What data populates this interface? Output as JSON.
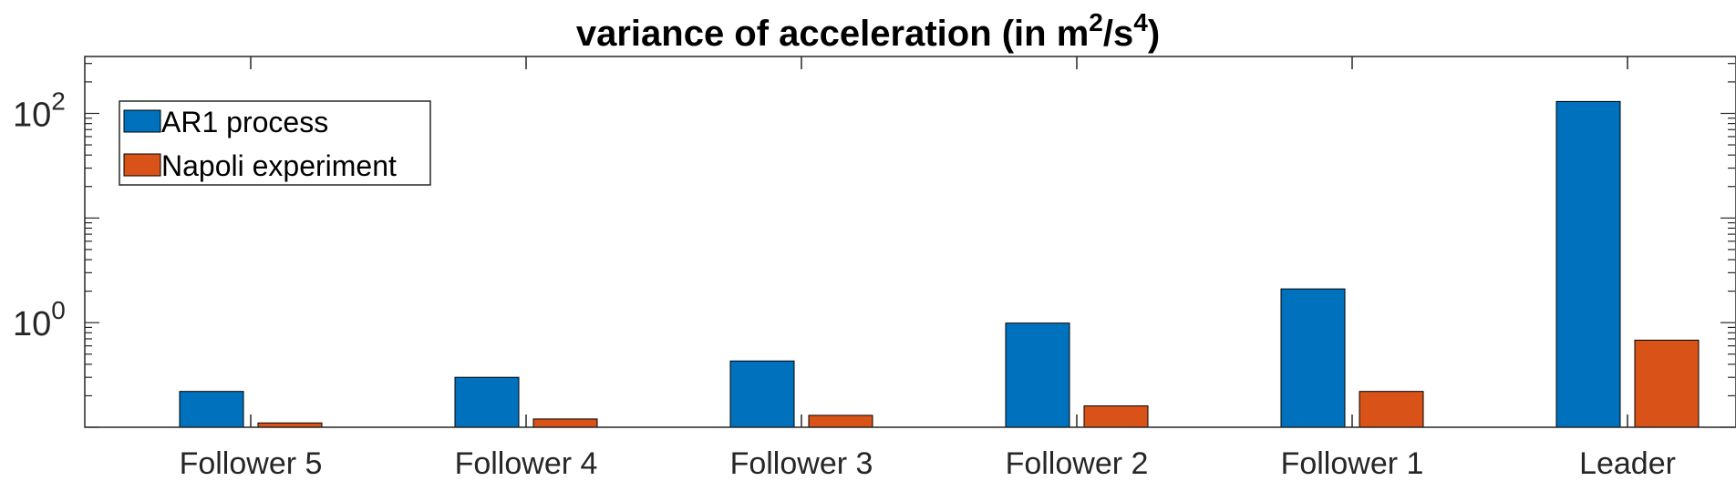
{
  "chart_data": {
    "type": "bar",
    "title": "variance of acceleration (in m",
    "title_sup1": "2",
    "title_mid": "/s",
    "title_sup2": "4",
    "title_end": ")",
    "categories": [
      "Follower 5",
      "Follower 4",
      "Follower 3",
      "Follower 2",
      "Follower 1",
      "Leader"
    ],
    "series": [
      {
        "name": "AR1 process",
        "color": "#0072BD",
        "values": [
          0.22,
          0.3,
          0.43,
          0.99,
          2.1,
          130
        ]
      },
      {
        "name": "Napoli experiment",
        "color": "#D95319",
        "values": [
          0.11,
          0.12,
          0.13,
          0.16,
          0.22,
          0.68
        ]
      }
    ],
    "yscale": "log",
    "ylim": [
      0.1,
      350
    ],
    "yticks": [
      {
        "value": 1,
        "base": "10",
        "exp": "0"
      },
      {
        "value": 100,
        "base": "10",
        "exp": "2"
      }
    ],
    "legend_position": "top-left",
    "grid": false
  }
}
